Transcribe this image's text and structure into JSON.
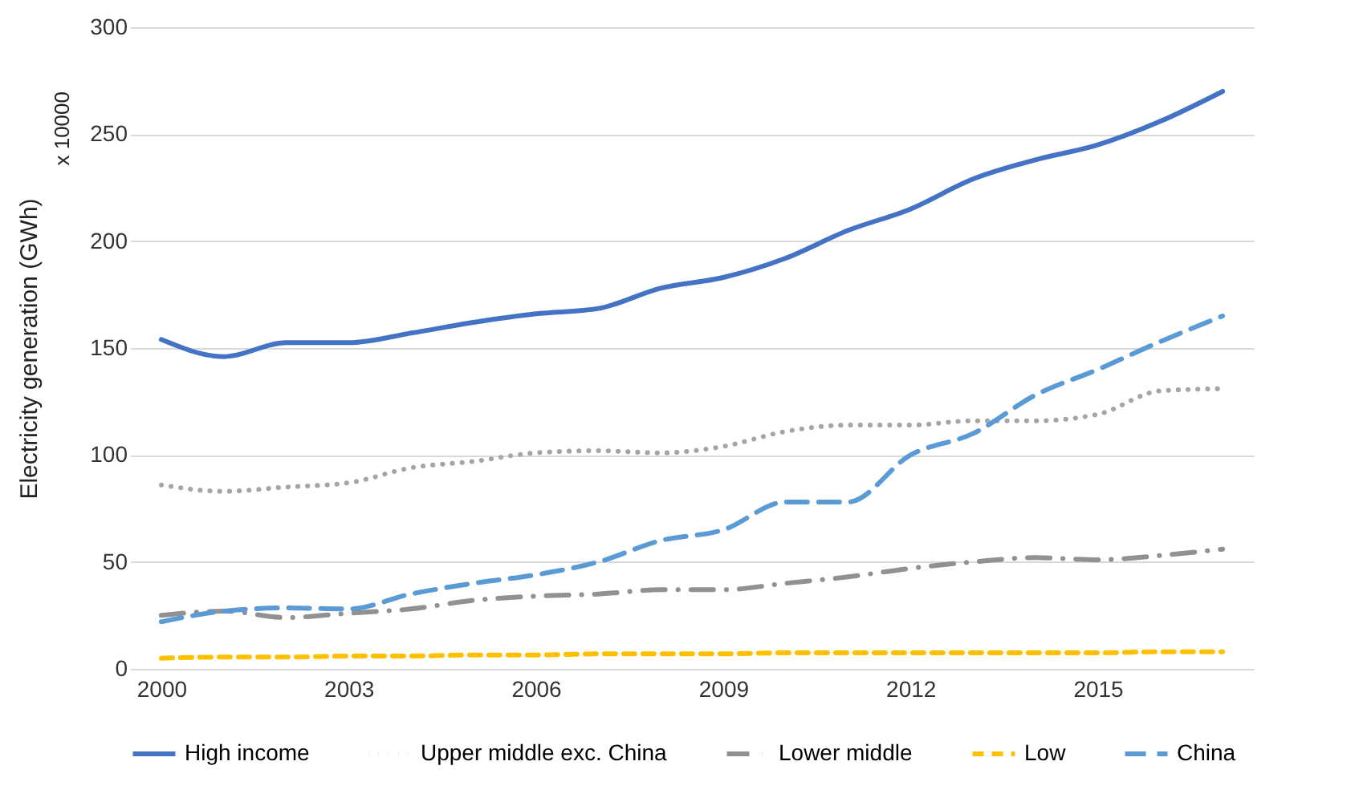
{
  "chart_data": {
    "type": "line",
    "ylabel": "Electricity generation (GWh)",
    "annotations": [
      "x 10000"
    ],
    "x": [
      2000,
      2001,
      2002,
      2003,
      2004,
      2005,
      2006,
      2007,
      2008,
      2009,
      2010,
      2011,
      2012,
      2013,
      2014,
      2015,
      2016,
      2017
    ],
    "xlim": [
      1999.5,
      2017.5
    ],
    "xticks": [
      2000,
      2003,
      2006,
      2009,
      2012,
      2015
    ],
    "ylim": [
      0,
      300
    ],
    "yticks": [
      0,
      50,
      100,
      150,
      200,
      250,
      300
    ],
    "grid": "y",
    "legend": "bottom",
    "series": [
      {
        "name": "High income",
        "color": "#4472c4",
        "line_style": "solid",
        "values": [
          154,
          146,
          152.5,
          152.5,
          157,
          162,
          166,
          168.5,
          178,
          183,
          192,
          205,
          215,
          229,
          238,
          245,
          256,
          270
        ]
      },
      {
        "name": "Upper middle exc. China",
        "color": "#a5a5a5",
        "line_style": "dotted",
        "values": [
          86,
          83,
          85,
          87,
          94,
          97,
          101,
          102,
          101,
          104,
          111,
          114,
          114,
          116,
          116,
          119,
          130,
          131
        ]
      },
      {
        "name": "Lower middle",
        "color": "#919191",
        "line_style": "dashdot",
        "values": [
          25,
          27,
          24,
          26,
          28,
          32,
          34,
          35,
          37,
          37,
          40,
          43,
          47,
          50,
          52,
          51,
          53,
          56
        ]
      },
      {
        "name": "Low",
        "color": "#ffc000",
        "line_style": "dashed",
        "values": [
          5,
          5.5,
          5.5,
          6,
          6,
          6.5,
          6.5,
          7,
          7,
          7,
          7.5,
          7.5,
          7.5,
          7.5,
          7.5,
          7.5,
          8,
          8
        ]
      },
      {
        "name": "China",
        "color": "#5b9bd5",
        "line_style": "longdash",
        "values": [
          22,
          27,
          28.5,
          28,
          35,
          40,
          44,
          50,
          60,
          65,
          78,
          78,
          100,
          110,
          128,
          140,
          153,
          165
        ]
      }
    ]
  }
}
